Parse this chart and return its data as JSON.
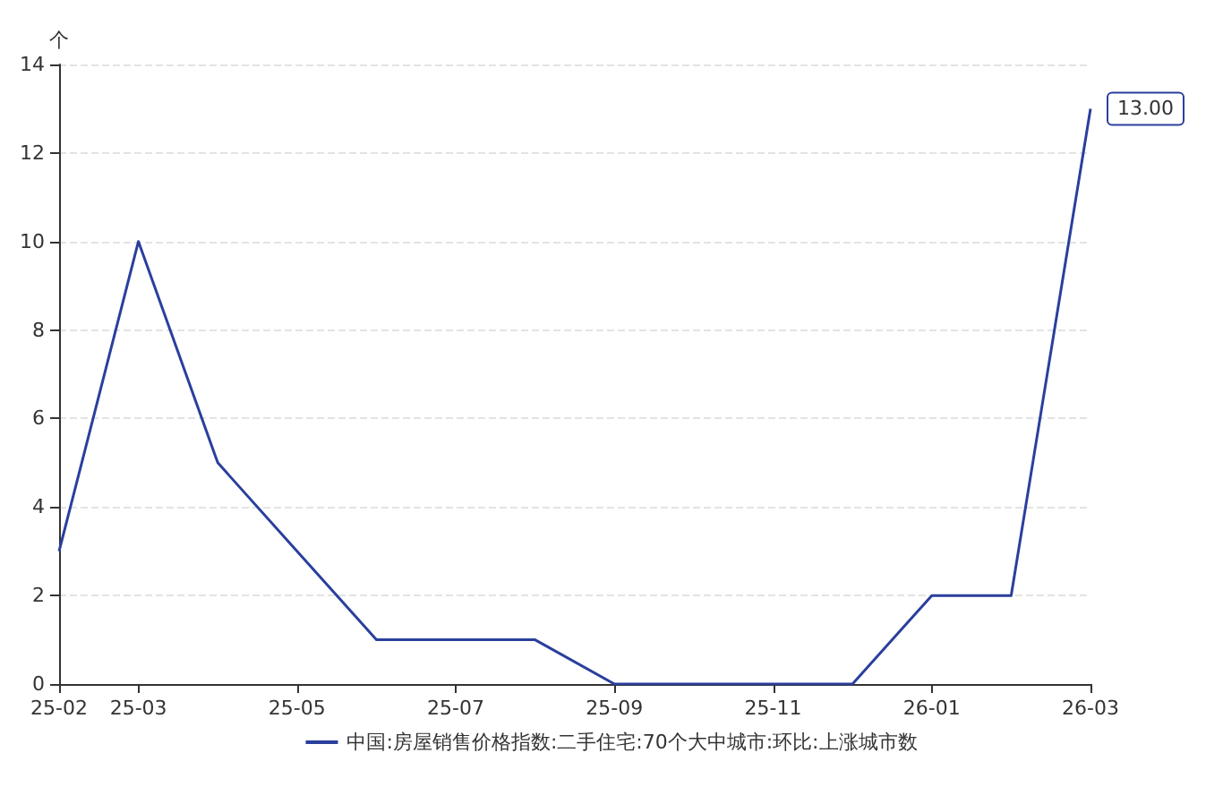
{
  "chart_data": {
    "type": "line",
    "ylabel": "个",
    "categories": [
      "25-02",
      "25-03",
      null,
      "25-05",
      null,
      "25-07",
      null,
      "25-09",
      null,
      "25-11",
      null,
      "26-01",
      null,
      "26-03"
    ],
    "series": [
      {
        "name": "中国:房屋销售价格指数:二手住宅:70个大中城市:环比:上涨城市数",
        "color": "#2a3f9d",
        "values": [
          3,
          10,
          5,
          3,
          1,
          1,
          1,
          0,
          0,
          0,
          0,
          2,
          2,
          13
        ],
        "value_labels": [
          null,
          null,
          null,
          null,
          null,
          null,
          null,
          null,
          null,
          null,
          null,
          null,
          null,
          "13.00"
        ]
      }
    ],
    "ylim": [
      0,
      14
    ],
    "yticks": [
      0,
      2,
      4,
      6,
      8,
      10,
      12,
      14
    ],
    "grid": "y",
    "legend": "bottom",
    "marker": "none"
  }
}
